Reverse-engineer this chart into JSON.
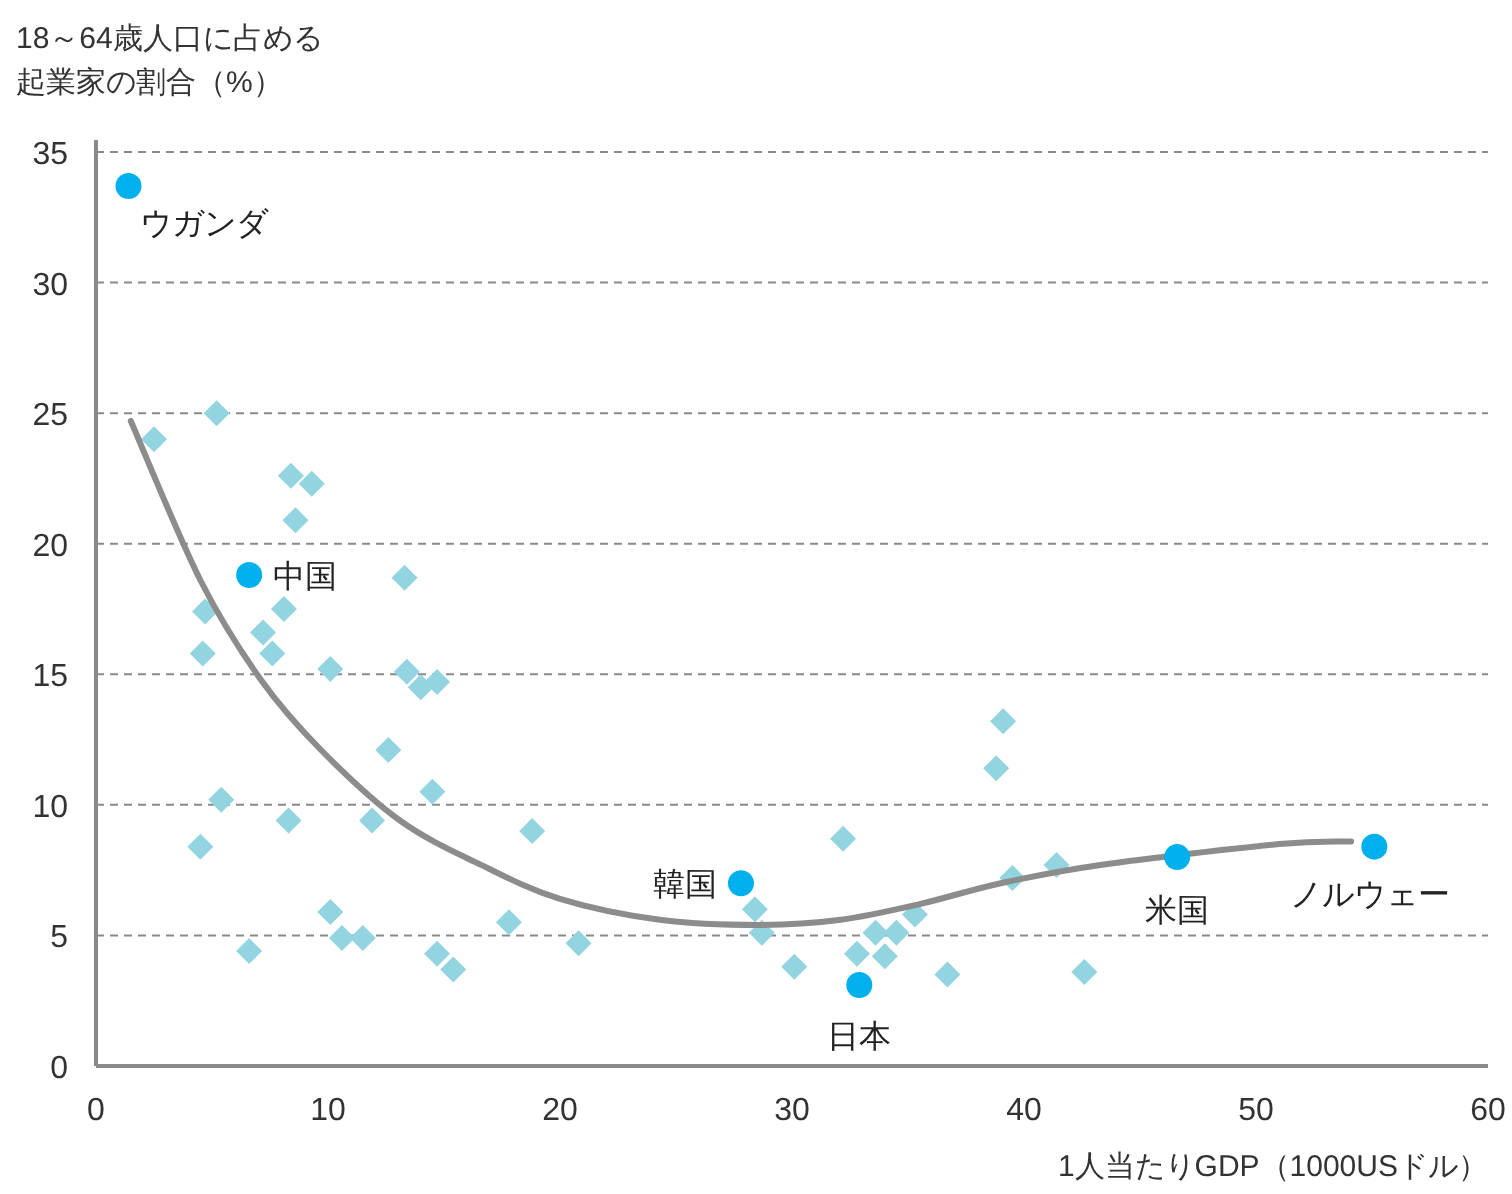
{
  "chart_data": {
    "type": "scatter",
    "ylabel": "18～64歳人口に占める起業家の割合（%）",
    "xlabel": "1人当たりGDP（1000USドル）",
    "xlim": [
      0,
      60
    ],
    "xticks": [
      0,
      10,
      20,
      30,
      40,
      50,
      60
    ],
    "ylim": [
      0,
      35
    ],
    "yticks": [
      0,
      5,
      10,
      15,
      20,
      25,
      30,
      35
    ],
    "grid": "y",
    "series": [
      {
        "type": "scatter",
        "marker": "diamond",
        "color": "#92d5e1",
        "x": [
          2.5,
          5.2,
          8.4,
          9.3,
          8.6,
          13.3,
          4.7,
          8.1,
          7.2,
          4.6,
          7.6,
          10.1,
          13.4,
          14.0,
          14.7,
          12.6,
          5.4,
          14.5,
          8.3,
          11.9,
          18.8,
          4.5,
          10.1,
          10.6,
          11.5,
          6.6,
          14.7,
          15.4,
          17.8,
          20.8,
          28.4,
          28.7,
          30.1,
          32.2,
          32.8,
          33.6,
          34.0,
          34.5,
          35.3,
          36.7,
          38.8,
          39.1,
          39.5,
          41.4,
          42.6
        ],
        "values": [
          24.0,
          25.0,
          22.6,
          22.3,
          20.9,
          18.7,
          17.4,
          17.5,
          16.6,
          15.8,
          15.8,
          15.2,
          15.1,
          14.5,
          14.7,
          12.1,
          10.2,
          10.5,
          9.4,
          9.4,
          9.0,
          8.4,
          5.9,
          4.9,
          4.9,
          4.4,
          4.3,
          3.7,
          5.5,
          4.7,
          6.0,
          5.1,
          3.8,
          8.7,
          4.3,
          5.1,
          4.2,
          5.1,
          5.8,
          3.5,
          11.4,
          13.2,
          7.2,
          7.7,
          3.6
        ]
      },
      {
        "type": "line",
        "marker": "none",
        "color": "#8c8c8c",
        "x": [
          1.5,
          4.5,
          7.1,
          9.7,
          13.1,
          16.6,
          20.0,
          24.3,
          28.6,
          32.1,
          35.5,
          39.0,
          43.3,
          51.0,
          54.1
        ],
        "values": [
          24.7,
          18.6,
          14.8,
          12.1,
          9.4,
          7.7,
          6.4,
          5.6,
          5.4,
          5.6,
          6.2,
          7.0,
          7.7,
          8.5,
          8.6
        ]
      },
      {
        "type": "scatter",
        "marker": "circle",
        "color": "#00b0ec",
        "x": [
          1.4,
          6.6,
          27.8,
          32.9,
          46.6,
          55.1
        ],
        "values": [
          33.7,
          18.8,
          7.0,
          3.1,
          8.0,
          8.4
        ]
      }
    ],
    "annotations": [
      {
        "text": "ウガンダ",
        "x": 1.4,
        "y": 33.7
      },
      {
        "text": "中国",
        "x": 6.6,
        "y": 18.8
      },
      {
        "text": "韓国",
        "x": 27.8,
        "y": 7.0
      },
      {
        "text": "日本",
        "x": 32.9,
        "y": 3.1
      },
      {
        "text": "米国",
        "x": 46.6,
        "y": 8.0
      },
      {
        "text": "ノルウェー",
        "x": 55.1,
        "y": 8.4
      }
    ]
  }
}
